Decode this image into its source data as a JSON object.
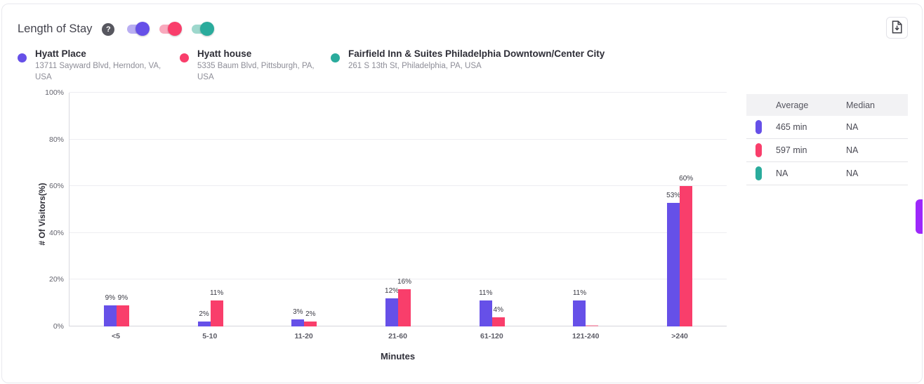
{
  "header": {
    "title": "Length of Stay",
    "help_icon": "?"
  },
  "toggles": [
    {
      "venue": "Hyatt Place",
      "on": true,
      "knob_color": "#6650e8",
      "track_color": "#b9aef2"
    },
    {
      "venue": "Hyatt house",
      "on": true,
      "knob_color": "#f93e6b",
      "track_color": "#f9a9bd"
    },
    {
      "venue": "Fairfield Inn & Suites Philadelphia Downtown/Center City",
      "on": true,
      "knob_color": "#2aab9c",
      "track_color": "#9ed8cd"
    }
  ],
  "legend": {
    "items": [
      {
        "name": "Hyatt Place",
        "address": "13711 Sayward Blvd, Herndon, VA, USA",
        "color": "#6650e8"
      },
      {
        "name": "Hyatt house",
        "address": "5335 Baum Blvd, Pittsburgh, PA, USA",
        "color": "#f93e6b"
      },
      {
        "name": "Fairfield Inn & Suites Philadelphia Downtown/Center City",
        "address": "261 S 13th St, Philadelphia, PA, USA",
        "color": "#2aab9c"
      }
    ]
  },
  "chart_data": {
    "type": "bar",
    "title": "Length of Stay",
    "xlabel": "Minutes",
    "ylabel": "# Of Visitors(%)",
    "ylim": [
      0,
      100
    ],
    "yticks": [
      0,
      20,
      40,
      60,
      80,
      100
    ],
    "ytick_labels": [
      "0%",
      "20%",
      "40%",
      "60%",
      "80%",
      "100%"
    ],
    "grid": true,
    "categories": [
      "<5",
      "5-10",
      "11-20",
      "21-60",
      "61-120",
      "121-240",
      ">240"
    ],
    "series": [
      {
        "name": "Hyatt Place",
        "color": "#6650e8",
        "values": [
          9,
          2,
          3,
          12,
          11,
          11,
          53
        ],
        "labels": [
          "9%",
          "2%",
          "3%",
          "12%",
          "11%",
          "11%",
          "53%"
        ]
      },
      {
        "name": "Hyatt house",
        "color": "#f93e6b",
        "values": [
          9,
          11,
          2,
          16,
          4,
          0.2,
          60
        ],
        "labels": [
          "9%",
          "11%",
          "2%",
          "16%",
          "4%",
          "",
          "60%"
        ]
      },
      {
        "name": "Fairfield Inn & Suites Philadelphia Downtown/Center City",
        "color": "#2aab9c",
        "values": [
          null,
          null,
          null,
          null,
          null,
          null,
          null
        ],
        "labels": [
          "",
          "",
          "",
          "",
          "",
          "",
          ""
        ]
      }
    ]
  },
  "stats_table": {
    "headers": [
      "Average",
      "Median"
    ],
    "rows": [
      {
        "venue": "Hyatt Place",
        "color": "#6650e8",
        "average": "465 min",
        "median": "NA"
      },
      {
        "venue": "Hyatt house",
        "color": "#f93e6b",
        "average": "597 min",
        "median": "NA"
      },
      {
        "venue": "Fairfield Inn & Suites Philadelphia Downtown/Center City",
        "color": "#2aab9c",
        "average": "NA",
        "median": "NA"
      }
    ]
  },
  "side_tab": {
    "color": "#9d28fb"
  }
}
